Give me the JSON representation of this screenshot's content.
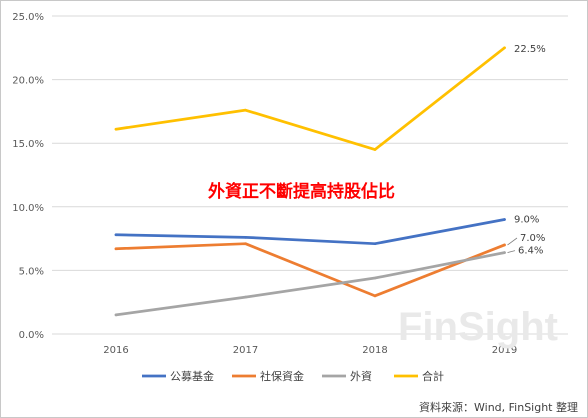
{
  "chart_data": {
    "type": "line",
    "categories": [
      "2016",
      "2017",
      "2018",
      "2019"
    ],
    "series": [
      {
        "name": "公募基金",
        "color": "#4472c4",
        "values": [
          7.8,
          7.6,
          7.1,
          9.0
        ]
      },
      {
        "name": "社保資金",
        "color": "#ed7d31",
        "values": [
          6.7,
          7.1,
          3.0,
          7.0
        ]
      },
      {
        "name": "外資",
        "color": "#a5a5a5",
        "values": [
          1.5,
          2.9,
          4.4,
          6.4
        ]
      },
      {
        "name": "合計",
        "color": "#ffc000",
        "values": [
          16.1,
          17.6,
          14.5,
          22.5
        ]
      }
    ],
    "data_labels": [
      "22.5%",
      "9.0%",
      "7.0%",
      "6.4%"
    ],
    "y_ticks": [
      "0.0%",
      "5.0%",
      "10.0%",
      "15.0%",
      "20.0%",
      "25.0%"
    ],
    "ylim": [
      0,
      25
    ],
    "grid": true,
    "legend_position": "bottom",
    "annotation": "外資正不斷提高持股佔比"
  },
  "source_note": "資料來源：Wind, FinSight 整理",
  "watermark": "FinSight"
}
